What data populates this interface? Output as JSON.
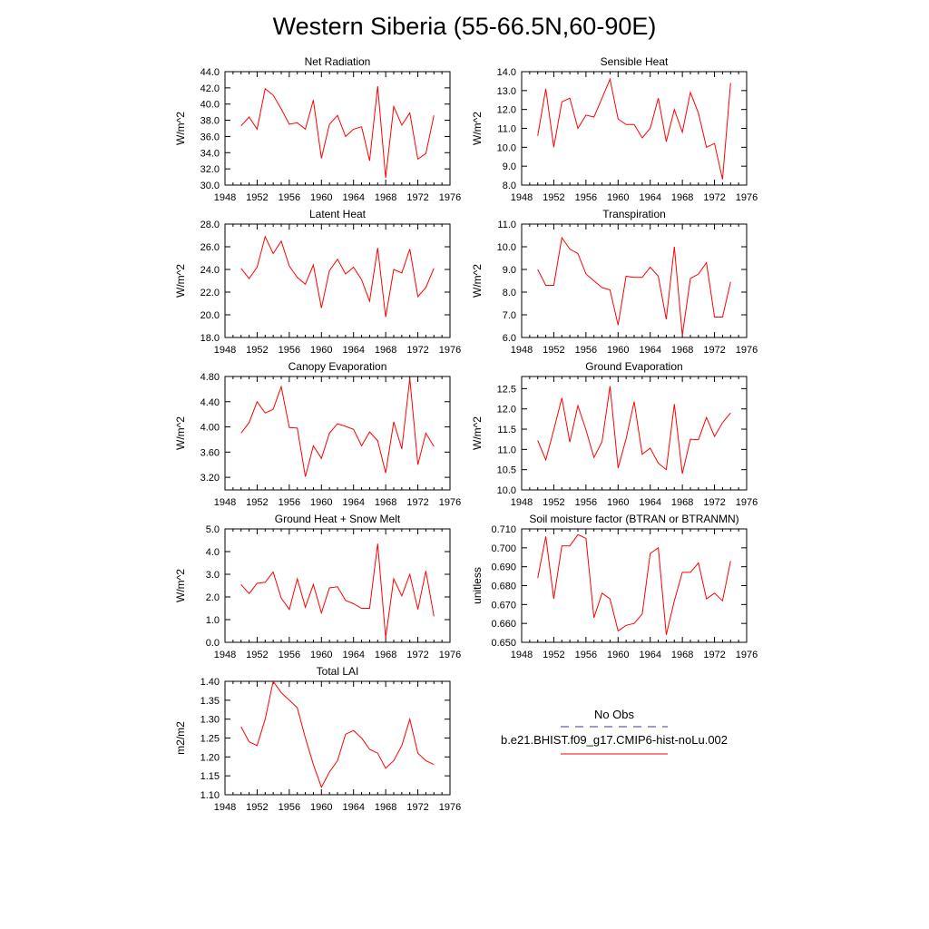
{
  "title": "Western Siberia (55-66.5N,60-90E)",
  "colors": {
    "model_line": "#ff0000",
    "obs_line": "#3a3a8c",
    "axis": "#000000"
  },
  "legend": {
    "obs_label": "No Obs",
    "model_label": "b.e21.BHIST.f09_g17.CMIP6-hist-noLu.002"
  },
  "chart_data": [
    {
      "type": "line",
      "title": "Net Radiation",
      "ylabel": "W/m^2",
      "xlim": [
        1948,
        1976
      ],
      "ylim": [
        30.0,
        44.0
      ],
      "x_ticks": [
        "1948",
        "1952",
        "1956",
        "1960",
        "1964",
        "1968",
        "1972",
        "1976"
      ],
      "y_ticks": [
        "30.0",
        "32.0",
        "34.0",
        "36.0",
        "38.0",
        "40.0",
        "42.0",
        "44.0"
      ],
      "x": [
        1950,
        1951,
        1952,
        1953,
        1954,
        1955,
        1956,
        1957,
        1958,
        1959,
        1960,
        1961,
        1962,
        1963,
        1964,
        1965,
        1966,
        1967,
        1968,
        1969,
        1970,
        1971,
        1972,
        1973,
        1974
      ],
      "values": [
        37.3,
        38.4,
        36.9,
        41.9,
        41.1,
        39.4,
        37.5,
        37.7,
        36.9,
        40.5,
        33.3,
        37.5,
        38.6,
        36.0,
        36.9,
        37.2,
        33.0,
        42.2,
        30.9,
        39.7,
        37.4,
        38.9,
        33.2,
        33.9,
        38.6
      ]
    },
    {
      "type": "line",
      "title": "Sensible Heat",
      "ylabel": "W/m^2",
      "xlim": [
        1948,
        1976
      ],
      "ylim": [
        8.0,
        14.0
      ],
      "x_ticks": [
        "1948",
        "1952",
        "1956",
        "1960",
        "1964",
        "1968",
        "1972",
        "1976"
      ],
      "y_ticks": [
        "8.0",
        "9.0",
        "10.0",
        "11.0",
        "12.0",
        "13.0",
        "14.0"
      ],
      "x": [
        1950,
        1951,
        1952,
        1953,
        1954,
        1955,
        1956,
        1957,
        1958,
        1959,
        1960,
        1961,
        1962,
        1963,
        1964,
        1965,
        1966,
        1967,
        1968,
        1969,
        1970,
        1971,
        1972,
        1973,
        1974
      ],
      "values": [
        10.6,
        13.1,
        10.0,
        12.4,
        12.6,
        11.0,
        11.7,
        11.6,
        12.6,
        13.6,
        11.5,
        11.2,
        11.2,
        10.5,
        11.0,
        12.6,
        10.3,
        12.0,
        10.8,
        12.9,
        11.8,
        10.0,
        10.2,
        8.3,
        13.4
      ]
    },
    {
      "type": "line",
      "title": "Latent Heat",
      "ylabel": "W/m^2",
      "xlim": [
        1948,
        1976
      ],
      "ylim": [
        18.0,
        28.0
      ],
      "x_ticks": [
        "1948",
        "1952",
        "1956",
        "1960",
        "1964",
        "1968",
        "1972",
        "1976"
      ],
      "y_ticks": [
        "18.0",
        "20.0",
        "22.0",
        "24.0",
        "26.0",
        "28.0"
      ],
      "x": [
        1950,
        1951,
        1952,
        1953,
        1954,
        1955,
        1956,
        1957,
        1958,
        1959,
        1960,
        1961,
        1962,
        1963,
        1964,
        1965,
        1966,
        1967,
        1968,
        1969,
        1970,
        1971,
        1972,
        1973,
        1974
      ],
      "values": [
        24.1,
        23.2,
        24.2,
        26.9,
        25.4,
        26.5,
        24.3,
        23.3,
        22.7,
        24.4,
        20.6,
        23.9,
        24.9,
        23.6,
        24.2,
        23.1,
        21.2,
        25.9,
        19.8,
        24.0,
        23.7,
        25.8,
        21.6,
        22.4,
        24.1
      ]
    },
    {
      "type": "line",
      "title": "Transpiration",
      "ylabel": "W/m^2",
      "xlim": [
        1948,
        1976
      ],
      "ylim": [
        6.0,
        11.0
      ],
      "x_ticks": [
        "1948",
        "1952",
        "1956",
        "1960",
        "1964",
        "1968",
        "1972",
        "1976"
      ],
      "y_ticks": [
        "6.0",
        "7.0",
        "8.0",
        "9.0",
        "10.0",
        "11.0"
      ],
      "x": [
        1950,
        1951,
        1952,
        1953,
        1954,
        1955,
        1956,
        1957,
        1958,
        1959,
        1960,
        1961,
        1962,
        1963,
        1964,
        1965,
        1966,
        1967,
        1968,
        1969,
        1970,
        1971,
        1972,
        1973,
        1974
      ],
      "values": [
        9.0,
        8.3,
        8.3,
        10.4,
        9.9,
        9.7,
        8.8,
        8.5,
        8.2,
        8.1,
        6.55,
        8.7,
        8.65,
        8.65,
        9.1,
        8.7,
        6.8,
        10.0,
        6.1,
        8.6,
        8.8,
        9.3,
        6.9,
        6.9,
        8.45
      ]
    },
    {
      "type": "line",
      "title": "Canopy Evaporation",
      "ylabel": "W/m^2",
      "xlim": [
        1948,
        1976
      ],
      "ylim": [
        3.0,
        4.8
      ],
      "x_ticks": [
        "1948",
        "1952",
        "1956",
        "1960",
        "1964",
        "1968",
        "1972",
        "1976"
      ],
      "y_ticks": [
        "3.20",
        "3.60",
        "4.00",
        "4.40",
        "4.80"
      ],
      "x": [
        1950,
        1951,
        1952,
        1953,
        1954,
        1955,
        1956,
        1957,
        1958,
        1959,
        1960,
        1961,
        1962,
        1963,
        1964,
        1965,
        1966,
        1967,
        1968,
        1969,
        1970,
        1971,
        1972,
        1973,
        1974
      ],
      "values": [
        3.9,
        4.07,
        4.4,
        4.22,
        4.28,
        4.64,
        3.99,
        3.98,
        3.21,
        3.7,
        3.5,
        3.9,
        4.05,
        4.01,
        3.96,
        3.7,
        3.92,
        3.78,
        3.27,
        4.08,
        3.65,
        4.77,
        3.4,
        3.9,
        3.69
      ]
    },
    {
      "type": "line",
      "title": "Ground Evaporation",
      "ylabel": "W/m^2",
      "xlim": [
        1948,
        1976
      ],
      "ylim": [
        10.0,
        12.8
      ],
      "x_ticks": [
        "1948",
        "1952",
        "1956",
        "1960",
        "1964",
        "1968",
        "1972",
        "1976"
      ],
      "y_ticks": [
        "10.0",
        "10.5",
        "11.0",
        "11.5",
        "12.0",
        "12.5"
      ],
      "x": [
        1950,
        1951,
        1952,
        1953,
        1954,
        1955,
        1956,
        1957,
        1958,
        1959,
        1960,
        1961,
        1962,
        1963,
        1964,
        1965,
        1966,
        1967,
        1968,
        1969,
        1970,
        1971,
        1972,
        1973,
        1974
      ],
      "values": [
        11.22,
        10.74,
        11.48,
        12.27,
        11.18,
        12.08,
        11.48,
        10.8,
        11.19,
        12.56,
        10.54,
        11.26,
        12.18,
        10.88,
        11.03,
        10.66,
        10.5,
        12.12,
        10.4,
        11.25,
        11.24,
        11.79,
        11.32,
        11.66,
        11.9
      ]
    },
    {
      "type": "line",
      "title": "Ground Heat + Snow Melt",
      "ylabel": "W/m^2",
      "xlim": [
        1948,
        1976
      ],
      "ylim": [
        0.0,
        5.0
      ],
      "x_ticks": [
        "1948",
        "1952",
        "1956",
        "1960",
        "1964",
        "1968",
        "1972",
        "1976"
      ],
      "y_ticks": [
        "0.0",
        "1.0",
        "2.0",
        "3.0",
        "4.0",
        "5.0"
      ],
      "x": [
        1950,
        1951,
        1952,
        1953,
        1954,
        1955,
        1956,
        1957,
        1958,
        1959,
        1960,
        1961,
        1962,
        1963,
        1964,
        1965,
        1966,
        1967,
        1968,
        1969,
        1970,
        1971,
        1972,
        1973,
        1974
      ],
      "values": [
        2.55,
        2.15,
        2.6,
        2.65,
        3.1,
        1.95,
        1.45,
        2.8,
        1.55,
        2.55,
        1.3,
        2.4,
        2.45,
        1.85,
        1.7,
        1.5,
        1.5,
        4.35,
        0.2,
        2.8,
        2.05,
        3.0,
        1.45,
        3.15,
        1.15
      ]
    },
    {
      "type": "line",
      "title": "Soil moisture factor (BTRAN or BTRANMN)",
      "ylabel": "unitless",
      "xlim": [
        1948,
        1976
      ],
      "ylim": [
        0.65,
        0.71
      ],
      "x_ticks": [
        "1948",
        "1952",
        "1956",
        "1960",
        "1964",
        "1968",
        "1972",
        "1976"
      ],
      "y_ticks": [
        "0.650",
        "0.660",
        "0.670",
        "0.680",
        "0.690",
        "0.700",
        "0.710"
      ],
      "x": [
        1950,
        1951,
        1952,
        1953,
        1954,
        1955,
        1956,
        1957,
        1958,
        1959,
        1960,
        1961,
        1962,
        1963,
        1964,
        1965,
        1966,
        1967,
        1968,
        1969,
        1970,
        1971,
        1972,
        1973,
        1974
      ],
      "values": [
        0.684,
        0.706,
        0.673,
        0.701,
        0.701,
        0.707,
        0.705,
        0.663,
        0.676,
        0.673,
        0.656,
        0.659,
        0.66,
        0.665,
        0.697,
        0.7,
        0.654,
        0.672,
        0.687,
        0.687,
        0.692,
        0.673,
        0.676,
        0.672,
        0.693
      ]
    },
    {
      "type": "line",
      "title": "Total LAI",
      "ylabel": "m2/m2",
      "xlim": [
        1948,
        1976
      ],
      "ylim": [
        1.1,
        1.4
      ],
      "x_ticks": [
        "1948",
        "1952",
        "1956",
        "1960",
        "1964",
        "1968",
        "1972",
        "1976"
      ],
      "y_ticks": [
        "1.10",
        "1.15",
        "1.20",
        "1.25",
        "1.30",
        "1.35",
        "1.40"
      ],
      "x": [
        1950,
        1951,
        1952,
        1953,
        1954,
        1955,
        1956,
        1957,
        1958,
        1959,
        1960,
        1961,
        1962,
        1963,
        1964,
        1965,
        1966,
        1967,
        1968,
        1969,
        1970,
        1971,
        1972,
        1973,
        1974
      ],
      "values": [
        1.28,
        1.24,
        1.23,
        1.3,
        1.4,
        1.37,
        1.35,
        1.33,
        1.25,
        1.18,
        1.12,
        1.16,
        1.19,
        1.26,
        1.27,
        1.25,
        1.22,
        1.21,
        1.17,
        1.19,
        1.23,
        1.3,
        1.21,
        1.19,
        1.18
      ]
    }
  ]
}
